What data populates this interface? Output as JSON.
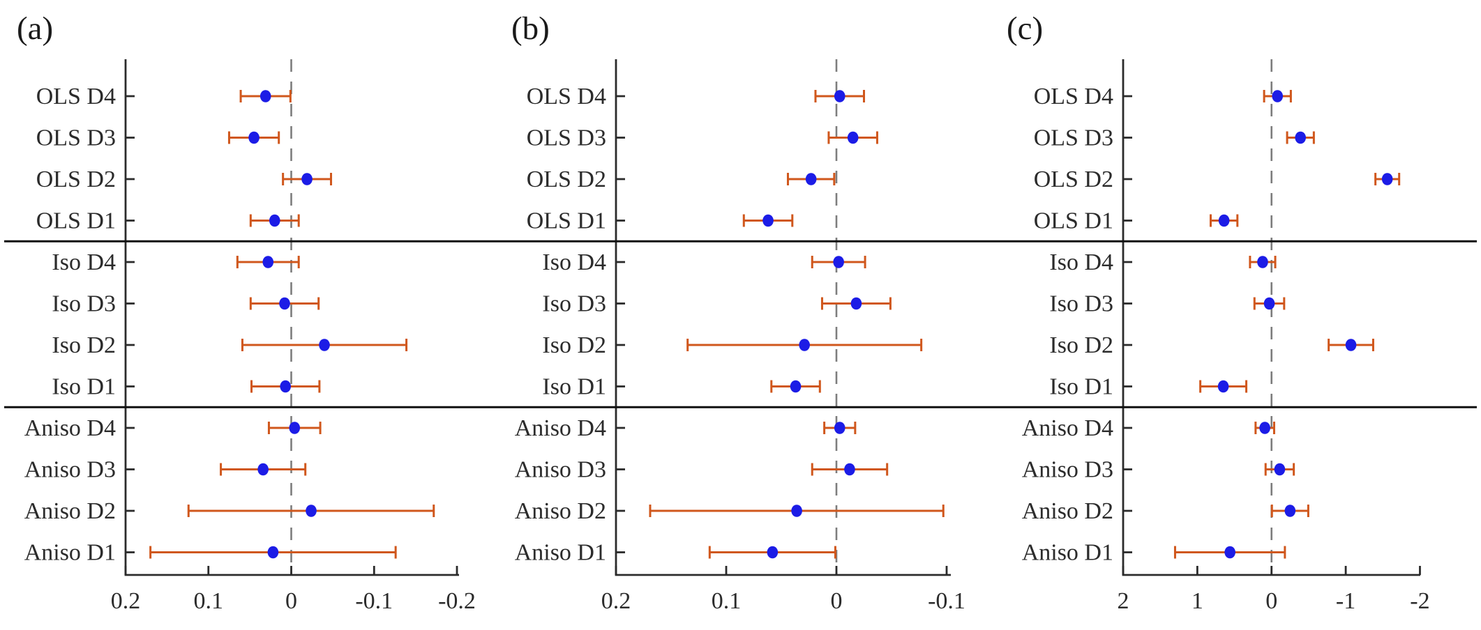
{
  "figure_letters": {
    "a": "(a)",
    "b": "(b)",
    "c": "(c)"
  },
  "colors": {
    "marker": "#1c1ce6",
    "errorbar": "#d0571c",
    "zero_dash_line": "#7d7d7d",
    "axis": "#2b2b2b",
    "separator": "#111111",
    "background": "#ffffff"
  },
  "chart_data": [
    {
      "type": "scatter",
      "subtype": "forest-errorbar-horizontal",
      "title": "(a)",
      "categories": [
        "OLS D4",
        "OLS D3",
        "OLS D2",
        "OLS D1",
        "Iso D4",
        "Iso D3",
        "Iso D2",
        "Iso D1",
        "Aniso D4",
        "Aniso D3",
        "Aniso D2",
        "Aniso D1"
      ],
      "values": [
        0.031,
        0.045,
        -0.019,
        0.02,
        0.028,
        0.008,
        -0.04,
        0.007,
        -0.004,
        0.034,
        -0.024,
        0.022
      ],
      "errors": [
        0.03,
        0.03,
        0.029,
        0.029,
        0.037,
        0.041,
        0.099,
        0.041,
        0.031,
        0.051,
        0.148,
        0.148
      ],
      "x_ticks": [
        0.2,
        0.1,
        0,
        -0.1,
        -0.2
      ],
      "x_tick_labels": [
        "0.2",
        "0.1",
        "0",
        "-0.1",
        "-0.2"
      ],
      "xlim": [
        0.2,
        -0.2025
      ],
      "x_axis_reversed": true,
      "zero_line": 0,
      "grid": false,
      "legend": null,
      "group_separators_after": [
        "OLS D1",
        "Iso D1"
      ]
    },
    {
      "type": "scatter",
      "subtype": "forest-errorbar-horizontal",
      "title": "(b)",
      "categories": [
        "OLS D4",
        "OLS D3",
        "OLS D2",
        "OLS D1",
        "Iso D4",
        "Iso D3",
        "Iso D2",
        "Iso D1",
        "Aniso D4",
        "Aniso D3",
        "Aniso D2",
        "Aniso D1"
      ],
      "values": [
        -0.003,
        -0.015,
        0.023,
        0.062,
        -0.002,
        -0.018,
        0.029,
        0.037,
        -0.003,
        -0.012,
        0.036,
        0.058
      ],
      "errors": [
        0.022,
        0.022,
        0.021,
        0.022,
        0.024,
        0.031,
        0.106,
        0.022,
        0.014,
        0.034,
        0.133,
        0.057
      ],
      "x_ticks": [
        0.2,
        0.1,
        0,
        -0.1
      ],
      "x_tick_labels": [
        "0.2",
        "0.1",
        "0",
        "-0.1"
      ],
      "xlim": [
        0.2,
        -0.1038
      ],
      "x_axis_reversed": true,
      "zero_line": 0,
      "grid": false,
      "legend": null,
      "group_separators_after": [
        "OLS D1",
        "Iso D1"
      ]
    },
    {
      "type": "scatter",
      "subtype": "forest-errorbar-horizontal",
      "title": "(c)",
      "categories": [
        "OLS D4",
        "OLS D3",
        "OLS D2",
        "OLS D1",
        "Iso D4",
        "Iso D3",
        "Iso D2",
        "Iso D1",
        "Aniso D4",
        "Aniso D3",
        "Aniso D2",
        "Aniso D1"
      ],
      "values": [
        -0.08,
        -0.39,
        -1.56,
        0.64,
        0.12,
        0.03,
        -1.07,
        0.65,
        0.09,
        -0.11,
        -0.25,
        0.56
      ],
      "errors": [
        0.18,
        0.18,
        0.16,
        0.18,
        0.17,
        0.2,
        0.3,
        0.31,
        0.125,
        0.19,
        0.245,
        0.74
      ],
      "x_ticks": [
        2,
        1,
        0,
        -1,
        -2
      ],
      "x_tick_labels": [
        "2",
        "1",
        "0",
        "-1",
        "-2"
      ],
      "xlim": [
        2,
        -2.005
      ],
      "x_axis_reversed": true,
      "zero_line": 0,
      "grid": false,
      "legend": null,
      "group_separators_after": [
        "OLS D1",
        "Iso D1"
      ]
    }
  ]
}
